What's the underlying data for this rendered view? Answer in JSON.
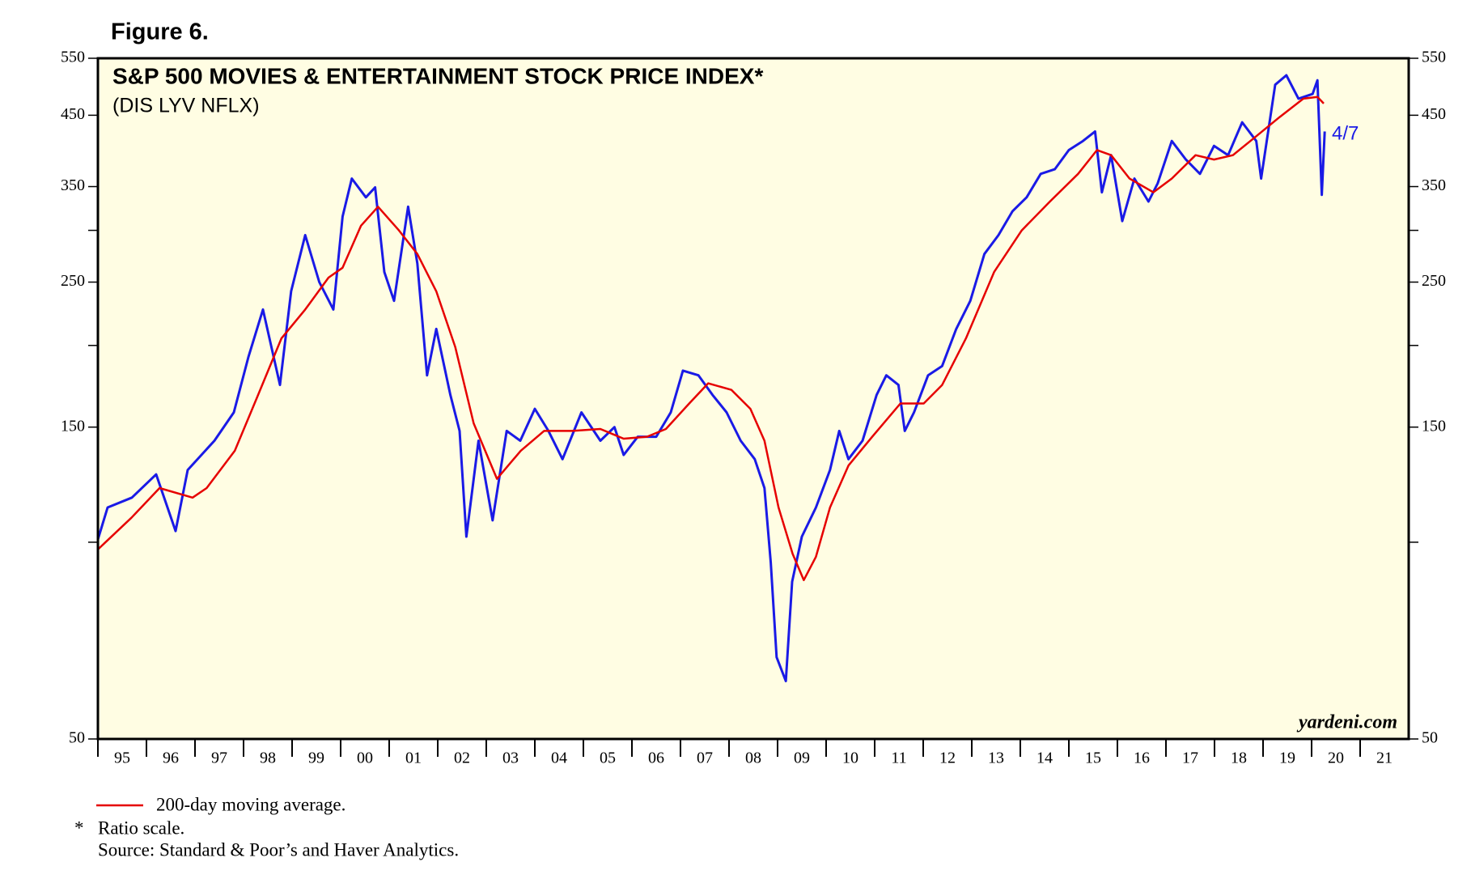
{
  "chart_data": {
    "type": "line",
    "figure_label": "Figure 6.",
    "title": "S&P 500 MOVIES & ENTERTAINMENT STOCK PRICE INDEX*",
    "subtitle": "(DIS LYV NFLX)",
    "end_label": "4/7",
    "watermark": "yardeni.com",
    "footnote_marker": "*",
    "footnote": "Ratio scale.",
    "source": "Source: Standard & Poor’s and Haver Analytics.",
    "log_y": true,
    "ylim": [
      50,
      550
    ],
    "yticks": [
      50,
      150,
      250,
      350,
      450,
      550
    ],
    "yminor": [
      100,
      200,
      300
    ],
    "xlim": [
      1995,
      2022
    ],
    "xticks": [
      {
        "value": 1995,
        "label": "95"
      },
      {
        "value": 1996,
        "label": "96"
      },
      {
        "value": 1997,
        "label": "97"
      },
      {
        "value": 1998,
        "label": "98"
      },
      {
        "value": 1999,
        "label": "99"
      },
      {
        "value": 2000,
        "label": "00"
      },
      {
        "value": 2001,
        "label": "01"
      },
      {
        "value": 2002,
        "label": "02"
      },
      {
        "value": 2003,
        "label": "03"
      },
      {
        "value": 2004,
        "label": "04"
      },
      {
        "value": 2005,
        "label": "05"
      },
      {
        "value": 2006,
        "label": "06"
      },
      {
        "value": 2007,
        "label": "07"
      },
      {
        "value": 2008,
        "label": "08"
      },
      {
        "value": 2009,
        "label": "09"
      },
      {
        "value": 2010,
        "label": "10"
      },
      {
        "value": 2011,
        "label": "11"
      },
      {
        "value": 2012,
        "label": "12"
      },
      {
        "value": 2013,
        "label": "13"
      },
      {
        "value": 2014,
        "label": "14"
      },
      {
        "value": 2015,
        "label": "15"
      },
      {
        "value": 2016,
        "label": "16"
      },
      {
        "value": 2017,
        "label": "17"
      },
      {
        "value": 2018,
        "label": "18"
      },
      {
        "value": 2019,
        "label": "19"
      },
      {
        "value": 2020,
        "label": "20"
      },
      {
        "value": 2021,
        "label": "21"
      }
    ],
    "series": [
      {
        "color": "#1a1ae6",
        "x": [
          1995.0,
          1995.2,
          1995.7,
          1996.2,
          1996.6,
          1996.85,
          1997.4,
          1997.8,
          1998.1,
          1998.4,
          1998.75,
          1998.98,
          1999.27,
          1999.56,
          1999.85,
          2000.04,
          2000.23,
          2000.52,
          2000.71,
          2000.9,
          2001.1,
          2001.39,
          2001.58,
          2001.78,
          2001.97,
          2002.26,
          2002.45,
          2002.59,
          2002.84,
          2003.13,
          2003.42,
          2003.7,
          2004.0,
          2004.28,
          2004.57,
          2004.96,
          2005.35,
          2005.64,
          2005.83,
          2006.12,
          2006.5,
          2006.8,
          2007.05,
          2007.37,
          2007.66,
          2007.95,
          2008.24,
          2008.53,
          2008.73,
          2008.86,
          2008.98,
          2009.17,
          2009.3,
          2009.5,
          2009.79,
          2010.08,
          2010.27,
          2010.46,
          2010.75,
          2011.04,
          2011.24,
          2011.49,
          2011.62,
          2011.81,
          2012.1,
          2012.39,
          2012.68,
          2012.97,
          2013.26,
          2013.55,
          2013.84,
          2014.13,
          2014.42,
          2014.71,
          2015.0,
          2015.29,
          2015.54,
          2015.68,
          2015.87,
          2016.1,
          2016.35,
          2016.64,
          2016.83,
          2017.12,
          2017.41,
          2017.7,
          2017.99,
          2018.28,
          2018.57,
          2018.86,
          2018.96,
          2019.25,
          2019.48,
          2019.73,
          2020.02,
          2020.12,
          2020.21,
          2020.27
        ],
        "values": [
          101,
          113,
          117,
          127,
          104,
          129,
          143,
          158,
          192,
          227,
          174,
          242,
          295,
          250,
          227,
          315,
          360,
          337,
          349,
          259,
          234,
          326,
          267,
          180,
          212,
          168,
          148,
          102,
          143,
          108,
          148,
          143,
          160,
          148,
          134,
          158,
          143,
          150,
          136,
          145,
          145,
          158,
          183,
          180,
          168,
          158,
          143,
          134,
          121,
          93,
          66.7,
          61.3,
          87,
          102,
          113,
          129,
          148,
          134,
          143,
          168,
          180,
          174,
          148,
          158,
          180,
          186,
          212,
          234,
          276,
          295,
          321,
          337,
          366,
          372,
          398,
          411,
          425,
          343,
          391,
          310,
          360,
          332,
          354,
          411,
          385,
          366,
          404,
          391,
          439,
          411,
          360,
          501,
          518,
          477,
          485,
          509,
          340,
          425
        ]
      },
      {
        "name": "200-day moving average.",
        "color": "#e60000",
        "x": [
          1995.0,
          1995.69,
          1996.27,
          1996.95,
          1997.24,
          1997.82,
          1998.3,
          1998.78,
          1999.27,
          1999.75,
          2000.04,
          2000.42,
          2000.77,
          2001.2,
          2001.58,
          2001.97,
          2002.36,
          2002.74,
          2003.22,
          2003.71,
          2004.19,
          2004.77,
          2005.35,
          2005.83,
          2006.31,
          2006.7,
          2007.18,
          2007.57,
          2008.05,
          2008.44,
          2008.73,
          2009.02,
          2009.31,
          2009.54,
          2009.79,
          2010.08,
          2010.46,
          2010.95,
          2011.53,
          2012.01,
          2012.39,
          2012.88,
          2013.46,
          2014.03,
          2014.61,
          2015.19,
          2015.58,
          2015.87,
          2016.25,
          2016.74,
          2017.12,
          2017.61,
          2017.99,
          2018.38,
          2018.86,
          2019.34,
          2019.83,
          2020.12,
          2020.25
        ],
        "values": [
          97.5,
          109,
          121,
          117,
          121,
          138,
          168,
          205,
          227,
          254,
          263,
          305,
          326,
          300,
          276,
          242,
          199,
          152,
          125,
          138,
          148,
          148,
          149,
          144,
          145,
          149,
          163,
          175,
          171,
          160,
          143,
          113,
          96,
          87.5,
          95,
          113,
          131,
          145,
          163,
          163,
          174,
          205,
          259,
          300,
          332,
          366,
          398,
          391,
          360,
          343,
          360,
          391,
          385,
          391,
          418,
          447,
          477,
          480,
          469
        ]
      }
    ]
  }
}
